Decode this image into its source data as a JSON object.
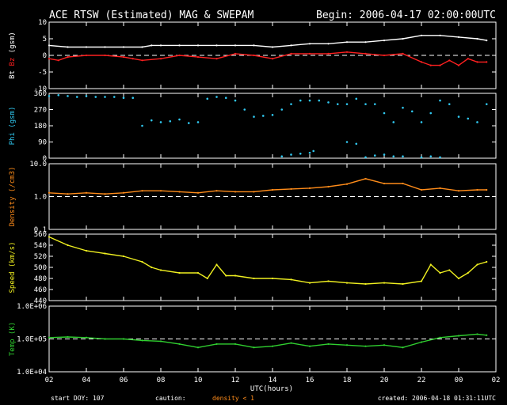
{
  "title_left": "ACE RTSW (Estimated) MAG & SWEPAM",
  "title_right": "Begin: 2006-04-17 02:00:00UTC",
  "xlabel": "UTC(hours)",
  "x_ticks": [
    "02",
    "04",
    "06",
    "08",
    "10",
    "12",
    "14",
    "16",
    "18",
    "20",
    "22",
    "00",
    "02"
  ],
  "footer": {
    "start_doy": "start DOY: 107",
    "caution": "caution:",
    "density_note": "density < 1",
    "created": "created: 2006-04-18 01:31:11UTC"
  },
  "colors": {
    "bt": "#ffffff",
    "bz": "#ff2020",
    "phi": "#30c8f0",
    "density": "#ff8c1a",
    "speed": "#f0f020",
    "temp": "#30d030"
  },
  "chart_data": [
    {
      "type": "line",
      "ylabel_parts": [
        {
          "text": "Bt",
          "color": "#ffffff"
        },
        {
          "text": " ",
          "color": "#ffffff"
        },
        {
          "text": "Bz",
          "color": "#ff2020"
        },
        {
          "text": " (gsm)",
          "color": "#ffffff"
        }
      ],
      "ylim": [
        -10,
        10
      ],
      "yticks": [
        "-10",
        "-5",
        "0",
        "5",
        "10"
      ],
      "ytick_values": [
        -10,
        -5,
        0,
        5,
        10
      ],
      "ref_line": 0,
      "series": [
        {
          "name": "Bt",
          "color": "#ffffff",
          "x": [
            2,
            3,
            4,
            5,
            6,
            7,
            7.5,
            8,
            9,
            10,
            11,
            12,
            13,
            14,
            15,
            16,
            17,
            18,
            19,
            20,
            21,
            22,
            23,
            24,
            25,
            25.5
          ],
          "y": [
            3,
            2.5,
            2.5,
            2.5,
            2.5,
            2.5,
            3,
            3,
            3,
            3,
            3,
            3,
            3,
            2.5,
            3,
            3.5,
            3.5,
            4,
            4,
            4.5,
            5,
            6,
            6,
            5.5,
            5,
            4.5
          ]
        },
        {
          "name": "Bz",
          "color": "#ff2020",
          "x": [
            2,
            2.5,
            3,
            4,
            5,
            6,
            6.5,
            7,
            8,
            9,
            10,
            11,
            12,
            13,
            14,
            15,
            16,
            17,
            18,
            19,
            20,
            21,
            22,
            22.5,
            23,
            23.5,
            24,
            24.5,
            25,
            25.5
          ],
          "y": [
            -1,
            -1.5,
            -0.5,
            0,
            0,
            -0.5,
            -1,
            -1.5,
            -1,
            0,
            -0.5,
            -1,
            0.5,
            0,
            -1,
            0.5,
            0.5,
            0.5,
            1,
            0.5,
            0,
            0.5,
            -2,
            -3,
            -3,
            -1.5,
            -3,
            -1,
            -2,
            -2
          ]
        }
      ]
    },
    {
      "type": "scatter",
      "ylabel_parts": [
        {
          "text": "Phi (gsm)",
          "color": "#30c8f0"
        }
      ],
      "ylim": [
        0,
        360
      ],
      "yticks": [
        "0",
        "90",
        "180",
        "270",
        "360"
      ],
      "ytick_values": [
        0,
        90,
        180,
        270,
        360
      ],
      "series": [
        {
          "name": "Phi",
          "color": "#30c8f0",
          "x": [
            2,
            2.5,
            3,
            3.5,
            4,
            4.5,
            5,
            5.5,
            6,
            6.5,
            7,
            7.5,
            8,
            8.5,
            9,
            9.5,
            10,
            10.5,
            11,
            11.5,
            12,
            12.5,
            13,
            13.5,
            14,
            14.5,
            15,
            15.5,
            16,
            16.5,
            17,
            17.5,
            18,
            18.5,
            19,
            19.5,
            20,
            20.5,
            21,
            21.5,
            22,
            22.5,
            23,
            23.5,
            24,
            24.5,
            25,
            25.5
          ],
          "y": [
            345,
            350,
            345,
            340,
            345,
            340,
            340,
            340,
            335,
            335,
            180,
            210,
            200,
            205,
            215,
            195,
            200,
            330,
            340,
            335,
            320,
            270,
            230,
            235,
            240,
            270,
            300,
            320,
            320,
            320,
            310,
            300,
            300,
            330,
            300,
            300,
            250,
            200,
            280,
            260,
            200,
            250,
            320,
            300,
            230,
            220,
            200,
            300
          ]
        },
        {
          "name": "Phi-low",
          "color": "#30c8f0",
          "x": [
            14.5,
            15,
            15.5,
            16,
            16.2,
            18,
            18.5,
            19,
            19.5,
            20,
            20.5,
            21,
            22,
            22.5,
            23
          ],
          "y": [
            10,
            20,
            25,
            30,
            40,
            90,
            80,
            5,
            15,
            20,
            10,
            10,
            5,
            10,
            5
          ]
        }
      ]
    },
    {
      "type": "line",
      "ylabel_parts": [
        {
          "text": "Density (/cm3)",
          "color": "#ff8c1a"
        }
      ],
      "log": true,
      "ylim": [
        0.1,
        10
      ],
      "yticks": [
        "0.1",
        "1.0",
        "10.0"
      ],
      "ytick_values": [
        0.1,
        1,
        10
      ],
      "ref_line": 1,
      "series": [
        {
          "name": "Density",
          "color": "#ff8c1a",
          "x": [
            2,
            3,
            4,
            5,
            6,
            7,
            8,
            9,
            10,
            11,
            12,
            13,
            14,
            15,
            16,
            17,
            18,
            19,
            20,
            21,
            22,
            23,
            24,
            25,
            25.5
          ],
          "y": [
            1.3,
            1.2,
            1.3,
            1.2,
            1.3,
            1.5,
            1.5,
            1.4,
            1.3,
            1.5,
            1.4,
            1.4,
            1.6,
            1.7,
            1.8,
            2.0,
            2.4,
            3.5,
            2.5,
            2.5,
            1.6,
            1.8,
            1.5,
            1.6,
            1.6
          ]
        }
      ]
    },
    {
      "type": "line",
      "ylabel_parts": [
        {
          "text": "Speed (km/s)",
          "color": "#f0f020"
        }
      ],
      "ylim": [
        440,
        560
      ],
      "yticks": [
        "440",
        "460",
        "480",
        "500",
        "520",
        "540",
        "560"
      ],
      "ytick_values": [
        440,
        460,
        480,
        500,
        520,
        540,
        560
      ],
      "series": [
        {
          "name": "Speed",
          "color": "#f0f020",
          "x": [
            2,
            3,
            4,
            5,
            6,
            7,
            7.5,
            8,
            9,
            10,
            10.5,
            11,
            11.5,
            12,
            13,
            14,
            15,
            16,
            17,
            18,
            19,
            20,
            21,
            22,
            22.5,
            23,
            23.5,
            24,
            24.5,
            25,
            25.5
          ],
          "y": [
            555,
            540,
            530,
            525,
            520,
            510,
            500,
            495,
            490,
            490,
            480,
            505,
            485,
            485,
            480,
            480,
            478,
            472,
            475,
            472,
            470,
            472,
            470,
            475,
            505,
            490,
            495,
            480,
            490,
            505,
            510
          ]
        }
      ]
    },
    {
      "type": "line",
      "ylabel_parts": [
        {
          "text": "Temp (K)",
          "color": "#30d030"
        }
      ],
      "log": true,
      "ylim": [
        10000,
        1000000
      ],
      "yticks": [
        "1.0E+04",
        "1.0E+05",
        "1.0E+06"
      ],
      "ytick_values": [
        10000,
        100000,
        1000000
      ],
      "ref_line": 100000,
      "series": [
        {
          "name": "Temp",
          "color": "#30d030",
          "x": [
            2,
            3,
            4,
            5,
            6,
            7,
            8,
            9,
            10,
            11,
            12,
            13,
            14,
            15,
            16,
            17,
            18,
            19,
            20,
            21,
            22,
            23,
            24,
            25,
            25.5
          ],
          "y": [
            110000,
            115000,
            110000,
            100000,
            100000,
            90000,
            85000,
            70000,
            55000,
            70000,
            70000,
            55000,
            60000,
            75000,
            60000,
            70000,
            65000,
            60000,
            65000,
            55000,
            80000,
            110000,
            125000,
            140000,
            130000
          ]
        }
      ]
    }
  ]
}
